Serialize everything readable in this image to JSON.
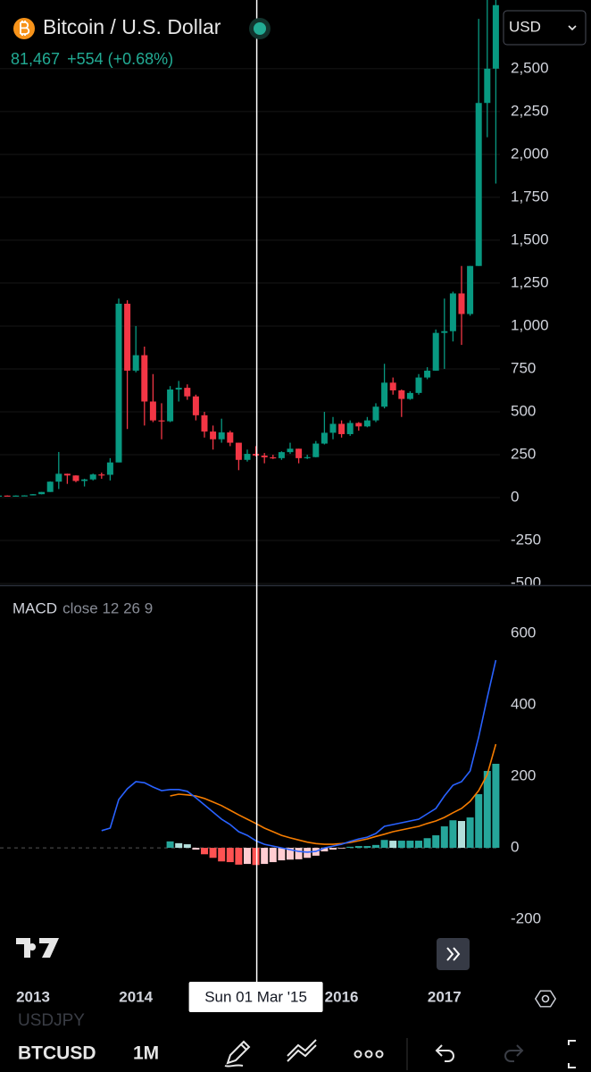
{
  "header": {
    "last": "81,467",
    "change": "+554 (+0.68%)",
    "currency": "USD"
  },
  "toolbar": {
    "symbol": "BTCUSD",
    "interval": "1M",
    "watermark": "USDJPY"
  },
  "chart_data": [
    {
      "type": "candlestick",
      "title": "Bitcoin / U.S. Dollar",
      "categories": [
        null,
        null,
        null,
        null,
        "2013",
        null,
        null,
        null,
        null,
        null,
        null,
        null,
        null,
        null,
        null,
        null,
        "2014",
        null,
        null,
        null,
        null,
        null,
        null,
        null,
        null,
        null,
        null,
        null,
        null,
        null,
        "Sun 01 Mar '15",
        null,
        null,
        null,
        null,
        null,
        null,
        null,
        null,
        null,
        "2016",
        null,
        null,
        null,
        null,
        null,
        null,
        null,
        null,
        null,
        null,
        null,
        "2017",
        null,
        null,
        null,
        null,
        null,
        null
      ],
      "crosshair_at": 30,
      "open": [
        10,
        12,
        11,
        12,
        13,
        20,
        33,
        93,
        139,
        129,
        97,
        106,
        135,
        133,
        205,
        1130,
        740,
        830,
        560,
        450,
        445,
        630,
        640,
        590,
        480,
        385,
        340,
        380,
        320,
        220,
        255,
        245,
        235,
        230,
        265,
        285,
        230,
        236,
        315,
        378,
        430,
        370,
        435,
        415,
        450,
        530,
        670,
        625,
        575,
        610,
        700,
        740,
        960,
        970,
        1190,
        1070,
        1350,
        2300,
        2500
      ],
      "high": [
        13,
        13,
        13,
        14,
        21,
        33,
        95,
        266,
        140,
        130,
        110,
        140,
        146,
        230,
        1160,
        1150,
        1000,
        880,
        720,
        550,
        650,
        680,
        660,
        600,
        500,
        420,
        460,
        390,
        320,
        280,
        300,
        260,
        250,
        270,
        320,
        285,
        250,
        330,
        500,
        470,
        450,
        450,
        440,
        470,
        550,
        780,
        700,
        630,
        620,
        720,
        760,
        980,
        1160,
        1200,
        1350,
        1350,
        2790,
        3000,
        2950
      ],
      "low": [
        10,
        10,
        10,
        12,
        13,
        19,
        33,
        50,
        80,
        90,
        65,
        100,
        110,
        100,
        205,
        400,
        730,
        420,
        440,
        340,
        440,
        560,
        570,
        450,
        350,
        280,
        320,
        300,
        160,
        210,
        240,
        200,
        225,
        220,
        255,
        200,
        225,
        235,
        310,
        340,
        350,
        360,
        390,
        410,
        440,
        520,
        600,
        470,
        570,
        600,
        690,
        740,
        750,
        910,
        890,
        1060,
        1350,
        2100,
        1830
      ],
      "close": [
        12,
        11,
        12,
        13,
        20,
        33,
        93,
        139,
        129,
        97,
        106,
        135,
        133,
        205,
        1130,
        740,
        830,
        560,
        450,
        445,
        630,
        640,
        590,
        480,
        385,
        340,
        380,
        320,
        220,
        255,
        245,
        235,
        230,
        265,
        285,
        230,
        236,
        315,
        378,
        430,
        370,
        435,
        415,
        450,
        530,
        670,
        625,
        575,
        610,
        700,
        740,
        960,
        970,
        1190,
        1070,
        1350,
        2300,
        2500,
        2870
      ],
      "up_color": "#089981",
      "down_color": "#f23645",
      "ylim": [
        -510,
        2900
      ],
      "yticks": [
        -500,
        -250,
        0,
        250,
        500,
        750,
        {
          "value": 1000,
          "label": "1,000"
        },
        {
          "value": 1250,
          "label": "1,250"
        },
        {
          "value": 1500,
          "label": "1,500"
        },
        {
          "value": 1750,
          "label": "1,750"
        },
        {
          "value": 2000,
          "label": "2,000"
        },
        {
          "value": 2250,
          "label": "2,250"
        },
        {
          "value": 2500,
          "label": "2,500"
        }
      ],
      "grid": true
    },
    {
      "type": "macd",
      "title": "MACD",
      "subtitle": "close 12 26 9",
      "macd": {
        "color": "#2962ff",
        "values": [
          null,
          null,
          null,
          null,
          null,
          null,
          null,
          null,
          null,
          null,
          null,
          null,
          48,
          55,
          135,
          165,
          185,
          182,
          170,
          160,
          163,
          163,
          158,
          140,
          120,
          100,
          80,
          65,
          45,
          35,
          20,
          10,
          5,
          0,
          -5,
          -10,
          -12,
          -10,
          0,
          5,
          10,
          18,
          25,
          30,
          40,
          60,
          65,
          70,
          75,
          80,
          95,
          110,
          145,
          175,
          185,
          215,
          310,
          420,
          525
        ]
      },
      "signal": {
        "color": "#f57c00",
        "values": [
          null,
          null,
          null,
          null,
          null,
          null,
          null,
          null,
          null,
          null,
          null,
          null,
          null,
          null,
          null,
          null,
          null,
          null,
          null,
          null,
          145,
          150,
          148,
          145,
          138,
          128,
          118,
          105,
          92,
          80,
          68,
          55,
          45,
          35,
          28,
          22,
          16,
          12,
          10,
          10,
          12,
          15,
          20,
          25,
          32,
          38,
          45,
          50,
          55,
          60,
          68,
          75,
          85,
          98,
          110,
          130,
          160,
          205,
          290
        ]
      },
      "histogram": {
        "colors": [
          "#26a69a",
          "#b2dfdb",
          "#ff5252",
          "#ffcdd2"
        ],
        "values": [
          null,
          null,
          null,
          null,
          null,
          null,
          null,
          null,
          null,
          null,
          null,
          null,
          null,
          null,
          null,
          null,
          null,
          null,
          null,
          null,
          18,
          13,
          10,
          -5,
          -18,
          -28,
          -38,
          -40,
          -47,
          -45,
          -48,
          -45,
          -40,
          -35,
          -33,
          -32,
          -28,
          -22,
          -10,
          -5,
          -2,
          3,
          5,
          5,
          8,
          22,
          20,
          20,
          20,
          20,
          27,
          35,
          60,
          77,
          75,
          85,
          150,
          215,
          235
        ]
      },
      "ylim": [
        -377,
        727
      ],
      "yticks": [
        -200,
        0,
        200,
        400,
        600
      ]
    }
  ]
}
